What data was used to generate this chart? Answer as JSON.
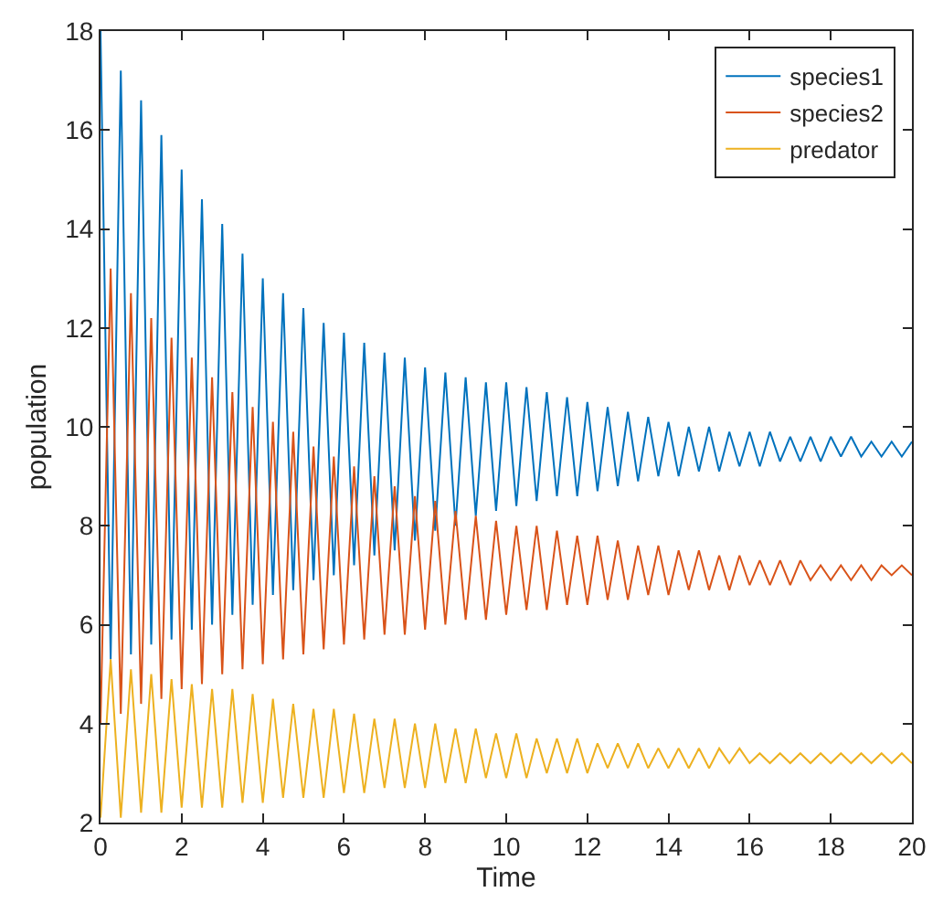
{
  "chart_data": {
    "type": "line",
    "xlabel": "Time",
    "ylabel": "population",
    "x": [
      0,
      0.25,
      0.5,
      0.75,
      1,
      1.25,
      1.5,
      1.75,
      2,
      2.25,
      2.5,
      2.75,
      3,
      3.25,
      3.5,
      3.75,
      4,
      4.25,
      4.5,
      4.75,
      5,
      5.25,
      5.5,
      5.75,
      6,
      6.25,
      6.5,
      6.75,
      7,
      7.25,
      7.5,
      7.75,
      8,
      8.25,
      8.5,
      8.75,
      9,
      9.25,
      9.5,
      9.75,
      10,
      10.25,
      10.5,
      10.75,
      11,
      11.25,
      11.5,
      11.75,
      12,
      12.25,
      12.5,
      12.75,
      13,
      13.25,
      13.5,
      13.75,
      14,
      14.25,
      14.5,
      14.75,
      15,
      15.25,
      15.5,
      15.75,
      16,
      16.25,
      16.5,
      16.75,
      17,
      17.25,
      17.5,
      17.75,
      18,
      18.25,
      18.5,
      18.75,
      19,
      19.25,
      19.5,
      19.75,
      20
    ],
    "series": [
      {
        "name": "species1",
        "color": "#0072bd",
        "values": [
          18,
          5.3,
          17.2,
          5.4,
          16.6,
          5.6,
          15.9,
          5.7,
          15.2,
          5.9,
          14.6,
          6.0,
          14.1,
          6.2,
          13.5,
          6.4,
          13.0,
          6.6,
          12.7,
          6.7,
          12.4,
          6.9,
          12.1,
          7.0,
          11.9,
          7.2,
          11.7,
          7.4,
          11.5,
          7.5,
          11.4,
          7.7,
          11.2,
          7.9,
          11.1,
          8.0,
          11.0,
          8.2,
          10.9,
          8.3,
          10.9,
          8.4,
          10.8,
          8.5,
          10.7,
          8.6,
          10.6,
          8.6,
          10.5,
          8.7,
          10.4,
          8.8,
          10.3,
          8.9,
          10.2,
          9.0,
          10.1,
          9.0,
          10.0,
          9.1,
          10.0,
          9.1,
          9.9,
          9.2,
          9.9,
          9.2,
          9.9,
          9.3,
          9.8,
          9.3,
          9.8,
          9.3,
          9.8,
          9.4,
          9.8,
          9.4,
          9.7,
          9.4,
          9.7,
          9.4,
          9.7
        ]
      },
      {
        "name": "species2",
        "color": "#d95319",
        "values": [
          4.0,
          13.2,
          4.2,
          12.7,
          4.4,
          12.2,
          4.5,
          11.8,
          4.7,
          11.4,
          4.8,
          11.0,
          5.0,
          10.7,
          5.1,
          10.4,
          5.2,
          10.1,
          5.3,
          9.9,
          5.4,
          9.6,
          5.5,
          9.4,
          5.6,
          9.2,
          5.7,
          9.0,
          5.8,
          8.8,
          5.8,
          8.6,
          5.9,
          8.5,
          6.0,
          8.3,
          6.1,
          8.2,
          6.1,
          8.1,
          6.2,
          8.0,
          6.3,
          8.0,
          6.3,
          7.9,
          6.4,
          7.8,
          6.4,
          7.8,
          6.5,
          7.7,
          6.5,
          7.6,
          6.6,
          7.6,
          6.6,
          7.5,
          6.7,
          7.5,
          6.7,
          7.4,
          6.7,
          7.4,
          6.8,
          7.3,
          6.8,
          7.3,
          6.8,
          7.3,
          6.9,
          7.2,
          6.9,
          7.2,
          6.9,
          7.2,
          6.9,
          7.2,
          7.0,
          7.2,
          7.0
        ]
      },
      {
        "name": "predator",
        "color": "#edb120",
        "values": [
          2.1,
          5.3,
          2.1,
          5.1,
          2.2,
          5.0,
          2.2,
          4.9,
          2.3,
          4.8,
          2.3,
          4.7,
          2.3,
          4.7,
          2.4,
          4.6,
          2.4,
          4.5,
          2.5,
          4.4,
          2.5,
          4.3,
          2.5,
          4.3,
          2.6,
          4.2,
          2.6,
          4.1,
          2.7,
          4.1,
          2.7,
          4.0,
          2.7,
          4.0,
          2.8,
          3.9,
          2.8,
          3.9,
          2.9,
          3.8,
          2.9,
          3.8,
          2.9,
          3.7,
          3.0,
          3.7,
          3.0,
          3.7,
          3.0,
          3.6,
          3.1,
          3.6,
          3.1,
          3.6,
          3.1,
          3.5,
          3.1,
          3.5,
          3.1,
          3.5,
          3.1,
          3.5,
          3.2,
          3.5,
          3.2,
          3.4,
          3.2,
          3.4,
          3.2,
          3.4,
          3.2,
          3.4,
          3.2,
          3.4,
          3.2,
          3.4,
          3.2,
          3.4,
          3.2,
          3.4,
          3.2
        ]
      }
    ],
    "xlim": [
      0,
      20
    ],
    "xticks": [
      0,
      2,
      4,
      6,
      8,
      10,
      12,
      14,
      16,
      18,
      20
    ],
    "ylim": [
      2,
      18
    ],
    "yticks": [
      2,
      4,
      6,
      8,
      10,
      12,
      14,
      16,
      18
    ],
    "legend": "top right",
    "marker": "none",
    "line_style": "solid"
  }
}
